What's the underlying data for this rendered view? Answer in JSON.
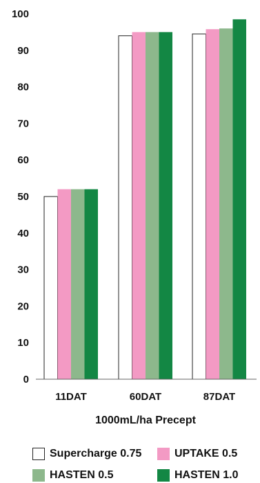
{
  "chart_data": {
    "type": "bar",
    "title": "",
    "xlabel": "1000mL/ha Precept",
    "ylabel": "",
    "ylim": [
      0,
      100
    ],
    "yticks": [
      0,
      10,
      20,
      30,
      40,
      50,
      60,
      70,
      80,
      90,
      100
    ],
    "grid": false,
    "legend_position": "bottom",
    "categories": [
      "11DAT",
      "60DAT",
      "87DAT"
    ],
    "series": [
      {
        "name": "Supercharge 0.75",
        "color": "#ffffff",
        "values": [
          50,
          94,
          94.5
        ]
      },
      {
        "name": "UPTAKE 0.5",
        "color": "#f39ac4",
        "values": [
          52,
          95,
          95.8
        ]
      },
      {
        "name": "HASTEN 0.5",
        "color": "#8db88c",
        "values": [
          52,
          95,
          96
        ]
      },
      {
        "name": "HASTEN 1.0",
        "color": "#138744",
        "values": [
          52,
          95,
          98.5
        ]
      }
    ]
  }
}
